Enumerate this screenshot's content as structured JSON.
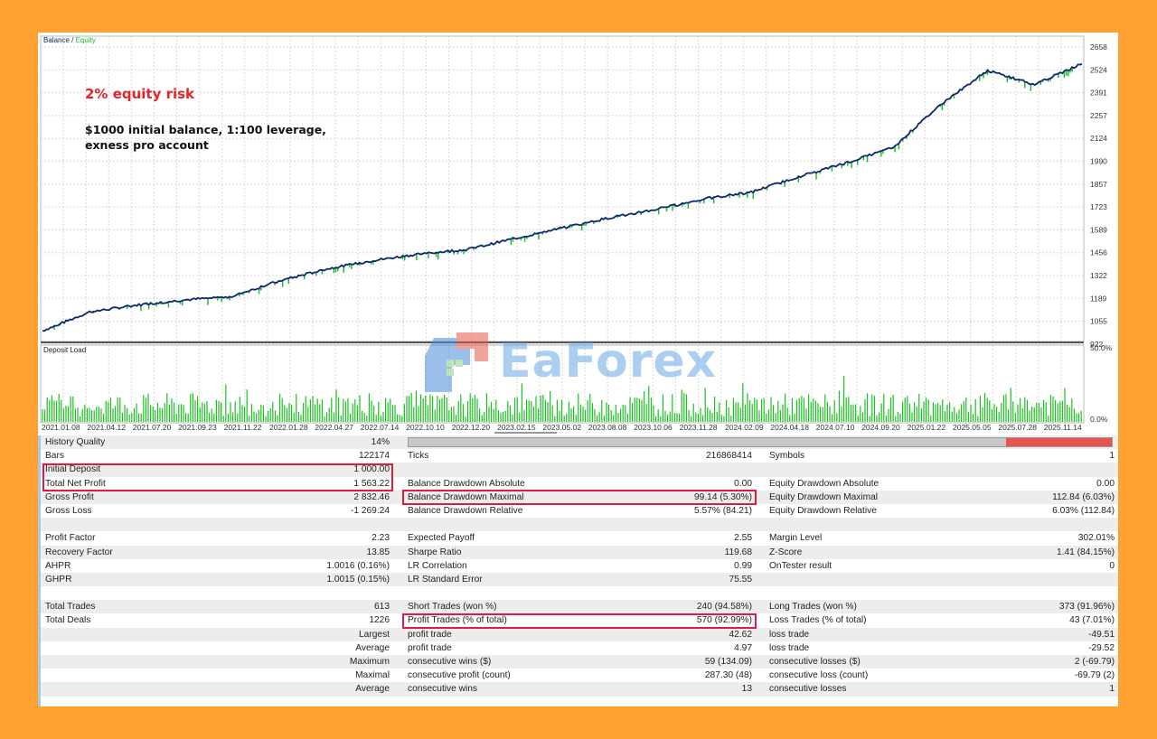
{
  "chart": {
    "legend_balance": "Balance",
    "legend_sep": " / ",
    "legend_equity": "Equity",
    "deposit_label": "Deposit Load",
    "y_ticks": [
      "2658",
      "2524",
      "2391",
      "2257",
      "2124",
      "1990",
      "1857",
      "1723",
      "1589",
      "1456",
      "1322",
      "1189",
      "1055",
      "922"
    ],
    "dl_ticks": [
      "50.0%",
      "0.0%"
    ],
    "x_ticks": [
      "2021.01.08",
      "2021.04.12",
      "2021.07.20",
      "2021.09.23",
      "2021.11.22",
      "2022.01.28",
      "2022.04.27",
      "2022.07.14",
      "2022.10.10",
      "2022.12.20",
      "2023.02.15",
      "2023.05.02",
      "2023.08.08",
      "2023.10.06",
      "2023.11.28",
      "2024.02.09",
      "2024.04.18",
      "2024.07.10",
      "2024.09.20",
      "2025.01.22",
      "2025.05.05",
      "2025.07.28",
      "2025.11.14"
    ],
    "colors": {
      "balance": "#0a2a6e",
      "equity": "#1fbf2a",
      "grid": "#d8d8d8",
      "deposit": "#19c21e"
    }
  },
  "chart_data": {
    "type": "line",
    "title": "",
    "series": [
      {
        "name": "Balance",
        "x": [
          "2021.01.08",
          "2021.04.12",
          "2021.07.20",
          "2021.09.23",
          "2021.11.22",
          "2022.01.28",
          "2022.04.27",
          "2022.07.14",
          "2022.10.10",
          "2022.12.20",
          "2023.02.15",
          "2023.05.02",
          "2023.08.08",
          "2023.10.06",
          "2023.11.28",
          "2024.02.09",
          "2024.04.18",
          "2024.07.10",
          "2024.09.20",
          "2025.01.22",
          "2025.05.05",
          "2025.07.28",
          "2025.11.14"
        ],
        "values": [
          1000,
          1110,
          1150,
          1180,
          1200,
          1290,
          1360,
          1410,
          1450,
          1475,
          1540,
          1600,
          1660,
          1710,
          1770,
          1810,
          1900,
          1980,
          2070,
          2320,
          2520,
          2440,
          2560
        ]
      },
      {
        "name": "Equity",
        "x": [],
        "values": []
      }
    ],
    "ylim": [
      922,
      2658
    ]
  },
  "annotations": {
    "risk": "2% equity risk",
    "setup": "$1000 initial balance, 1:100 leverage, exness pro account"
  },
  "watermark": {
    "text": "EaForex"
  },
  "report": {
    "history_quality_label": "History Quality",
    "history_quality_value": "14%",
    "rows": [
      {
        "l1": "Bars",
        "v1": "122174",
        "l2": "Ticks",
        "v2": "216868414",
        "l3": "Symbols",
        "v3": "1"
      },
      {
        "l1": "Initial Deposit",
        "v1": "1 000.00",
        "l2": "",
        "v2": "",
        "l3": "",
        "v3": ""
      },
      {
        "l1": "Total Net Profit",
        "v1": "1 563.22",
        "l2": "Balance Drawdown Absolute",
        "v2": "0.00",
        "l3": "Equity Drawdown Absolute",
        "v3": "0.00"
      },
      {
        "l1": "Gross Profit",
        "v1": "2 832.46",
        "l2": "Balance Drawdown Maximal",
        "v2": "99.14 (5.30%)",
        "l3": "Equity Drawdown Maximal",
        "v3": "112.84 (6.03%)"
      },
      {
        "l1": "Gross Loss",
        "v1": "-1 269.24",
        "l2": "Balance Drawdown Relative",
        "v2": "5.57% (84.21)",
        "l3": "Equity Drawdown Relative",
        "v3": "6.03% (112.84)"
      },
      {
        "l1": "",
        "v1": "",
        "l2": "",
        "v2": "",
        "l3": "",
        "v3": ""
      },
      {
        "l1": "Profit Factor",
        "v1": "2.23",
        "l2": "Expected Payoff",
        "v2": "2.55",
        "l3": "Margin Level",
        "v3": "302.01%"
      },
      {
        "l1": "Recovery Factor",
        "v1": "13.85",
        "l2": "Sharpe Ratio",
        "v2": "119.68",
        "l3": "Z-Score",
        "v3": "1.41 (84.15%)"
      },
      {
        "l1": "AHPR",
        "v1": "1.0016 (0.16%)",
        "l2": "LR Correlation",
        "v2": "0.99",
        "l3": "OnTester result",
        "v3": "0"
      },
      {
        "l1": "GHPR",
        "v1": "1.0015 (0.15%)",
        "l2": "LR Standard Error",
        "v2": "75.55",
        "l3": "",
        "v3": ""
      },
      {
        "l1": "",
        "v1": "",
        "l2": "",
        "v2": "",
        "l3": "",
        "v3": ""
      },
      {
        "l1": "Total Trades",
        "v1": "613",
        "l2": "Short Trades (won %)",
        "v2": "240 (94.58%)",
        "l3": "Long Trades (won %)",
        "v3": "373 (91.96%)"
      },
      {
        "l1": "Total Deals",
        "v1": "1226",
        "l2": "Profit Trades (% of total)",
        "v2": "570 (92.99%)",
        "l3": "Loss Trades (% of total)",
        "v3": "43 (7.01%)"
      },
      {
        "l1": "",
        "v1": "Largest",
        "l2": "profit trade",
        "v2": "42.62",
        "l3": "loss trade",
        "v3": "-49.51"
      },
      {
        "l1": "",
        "v1": "Average",
        "l2": "profit trade",
        "v2": "4.97",
        "l3": "loss trade",
        "v3": "-29.52"
      },
      {
        "l1": "",
        "v1": "Maximum",
        "l2": "consecutive wins ($)",
        "v2": "59 (134.09)",
        "l3": "consecutive losses ($)",
        "v3": "2 (-69.79)"
      },
      {
        "l1": "",
        "v1": "Maximal",
        "l2": "consecutive profit (count)",
        "v2": "287.30 (48)",
        "l3": "consecutive loss (count)",
        "v3": "-69.79 (2)"
      },
      {
        "l1": "",
        "v1": "Average",
        "l2": "consecutive wins",
        "v2": "13",
        "l3": "consecutive losses",
        "v3": "1"
      },
      {
        "l1": "",
        "v1": "",
        "l2": "",
        "v2": "",
        "l3": "",
        "v3": ""
      }
    ]
  }
}
